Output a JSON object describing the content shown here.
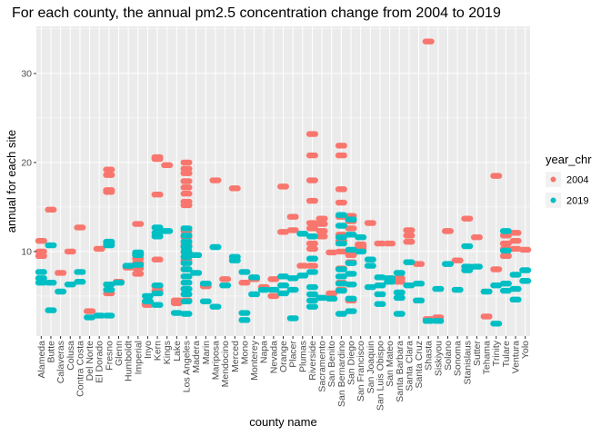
{
  "chart_data": {
    "type": "scatter",
    "title": "For each county, the annual pm2.5 concentration change from 2004 to 2019",
    "xlabel": "county name",
    "ylabel": "annual for each site",
    "ylim": [
      0.5,
      35.3
    ],
    "yticks": [
      10,
      20,
      30
    ],
    "grid": true,
    "legend": {
      "title": "year_chr",
      "placement": "right",
      "entries": [
        "2004",
        "2019"
      ]
    },
    "colors": {
      "2004": "#F8766D",
      "2019": "#00BFC4",
      "panel": "#EBEBEB",
      "grid": "#FFFFFF"
    },
    "categories": [
      "Alameda",
      "Butte",
      "Calaveras",
      "Colusa",
      "Contra Costa",
      "Del Norte",
      "El Dorado",
      "Fresno",
      "Glenn",
      "Humboldt",
      "Imperial",
      "Inyo",
      "Kern",
      "Kings",
      "Lake",
      "Los Angeles",
      "Madera",
      "Marin",
      "Mariposa",
      "Mendocino",
      "Merced",
      "Mono",
      "Monterey",
      "Napa",
      "Nevada",
      "Orange",
      "Placer",
      "Plumas",
      "Riverside",
      "Sacramento",
      "San Benito",
      "San Bernardino",
      "San Diego",
      "San Francisco",
      "San Joaquin",
      "San Luis Obispo",
      "San Mateo",
      "Santa Barbara",
      "Santa Clara",
      "Santa Cruz",
      "Shasta",
      "Siskiyou",
      "Solano",
      "Sonoma",
      "Stanislaus",
      "Sutter",
      "Tehama",
      "Trinity",
      "Tulare",
      "Ventura",
      "Yolo"
    ],
    "series": [
      {
        "name": "2004",
        "values": [
          [
            11.2,
            10.0,
            9.5
          ],
          [
            14.7
          ],
          [
            7.6
          ],
          [
            10.0
          ],
          [
            12.7
          ],
          [
            3.3
          ],
          [
            10.3
          ],
          [
            19.2,
            18.6,
            16.9,
            16.7,
            11.0,
            6.3,
            5.3
          ],
          [
            6.6
          ],
          [
            8.2
          ],
          [
            13.1,
            9.8,
            9.2,
            8.7,
            8.1,
            7.5
          ],
          [
            4.0,
            4.3
          ],
          [
            20.6,
            20.4,
            16.4,
            9.1,
            6.1,
            5.6
          ],
          [
            19.7
          ],
          [
            4.2,
            4.5
          ],
          [
            20.0,
            19.3,
            18.8,
            17.9,
            17.2,
            16.5,
            15.6,
            15.2,
            12.3,
            11.6,
            10.7,
            9.9,
            9.0,
            8.0,
            7.2,
            4.5
          ],
          [
            9.6
          ],
          [
            6.1
          ],
          [
            18.0
          ],
          [
            6.9
          ],
          [
            17.1
          ],
          [
            6.5
          ],
          [
            6.9
          ],
          [
            6.0
          ],
          [
            5.0,
            6.9
          ],
          [
            17.3,
            12.2
          ],
          [
            13.9,
            12.4
          ],
          [
            8.4
          ],
          [
            23.2,
            20.8,
            18.0,
            15.7,
            13.2,
            12.6,
            10.9,
            10.3,
            8.4
          ],
          [
            13.7,
            13.1,
            12.3,
            11.7
          ],
          [
            9.9,
            5.3,
            4.7
          ],
          [
            21.9,
            20.8,
            17.0,
            15.5,
            13.9,
            11.9,
            11.2,
            10.0,
            8.1,
            6.5,
            5.7
          ],
          [
            14.0,
            13.4,
            12.6,
            9.6,
            8.8,
            4.5
          ],
          [
            10.8,
            10.6,
            10.3
          ],
          [
            13.2
          ],
          [
            10.9
          ],
          [
            10.9
          ],
          [
            7.0,
            6.6
          ],
          [
            11.1,
            11.8,
            12.4
          ],
          [
            8.6
          ],
          [
            33.6,
            2.4
          ],
          [
            2.6
          ],
          [
            12.3
          ],
          [
            9.0
          ],
          [
            13.7
          ],
          [
            11.6
          ],
          [
            2.7
          ],
          [
            18.5,
            8.0
          ],
          [
            11.8,
            10.9,
            10.3,
            9.5
          ],
          [
            12.1,
            11.2,
            10.3
          ],
          [
            10.2
          ]
        ]
      },
      {
        "name": "2019",
        "values": [
          [
            7.7,
            7.0,
            6.5
          ],
          [
            10.7,
            6.5,
            3.4
          ],
          [
            5.5
          ],
          [
            6.3
          ],
          [
            7.7,
            6.6
          ],
          [
            2.6
          ],
          [
            2.8
          ],
          [
            11.1,
            10.7,
            6.3,
            5.7,
            2.8
          ],
          [
            6.5
          ],
          [
            8.4
          ],
          [
            9.6,
            9.9,
            8.5
          ],
          [
            4.4,
            5.0
          ],
          [
            12.7,
            12.1,
            11.7,
            6.2,
            5.3,
            4.0
          ],
          [
            12.3
          ],
          [
            3.1
          ],
          [
            12.6,
            11.8,
            11.1,
            10.5,
            10.0,
            9.4,
            8.7,
            8.0,
            7.2,
            6.5,
            5.8,
            5.2,
            4.4,
            3.0
          ],
          [
            9.6,
            7.6
          ],
          [
            6.4,
            4.4
          ],
          [
            10.5,
            3.8
          ],
          [
            6.2
          ],
          [
            9.4,
            9.0
          ],
          [
            7.7,
            3.1,
            2.3
          ],
          [
            7.1,
            5.2
          ],
          [
            5.7
          ],
          [
            5.7
          ],
          [
            7.2,
            6.2,
            5.3
          ],
          [
            7.0,
            5.7,
            2.5
          ],
          [
            12.0,
            7.3
          ],
          [
            11.7,
            9.2,
            7.7,
            6.0,
            5.2,
            4.5,
            3.8
          ],
          [
            4.8
          ],
          [
            4.7
          ],
          [
            14.1,
            12.9,
            11.6,
            10.9,
            8.0,
            7.2,
            6.4,
            5.6,
            3.0
          ],
          [
            13.6,
            11.9,
            10.2,
            8.7,
            7.5,
            6.3,
            4.7,
            3.3
          ],
          [
            11.6,
            10.0
          ],
          [
            9.1,
            8.4,
            6.0
          ],
          [
            7.1,
            6.2,
            5.2,
            4.1
          ],
          [
            7.0,
            6.6
          ],
          [
            7.6,
            5.4,
            4.8,
            3.0
          ],
          [
            8.8,
            6.2
          ],
          [
            6.4,
            4.5
          ],
          [
            2.2
          ],
          [
            2.2,
            5.8
          ],
          [
            8.6
          ],
          [
            5.7
          ],
          [
            10.6,
            8.3,
            7.9
          ],
          [
            8.3
          ],
          [
            5.5
          ],
          [
            6.2,
            1.9
          ],
          [
            12.3,
            10.1,
            6.4,
            5.6
          ],
          [
            7.4,
            5.8,
            4.6
          ],
          [
            7.9,
            6.7
          ]
        ]
      }
    ]
  }
}
